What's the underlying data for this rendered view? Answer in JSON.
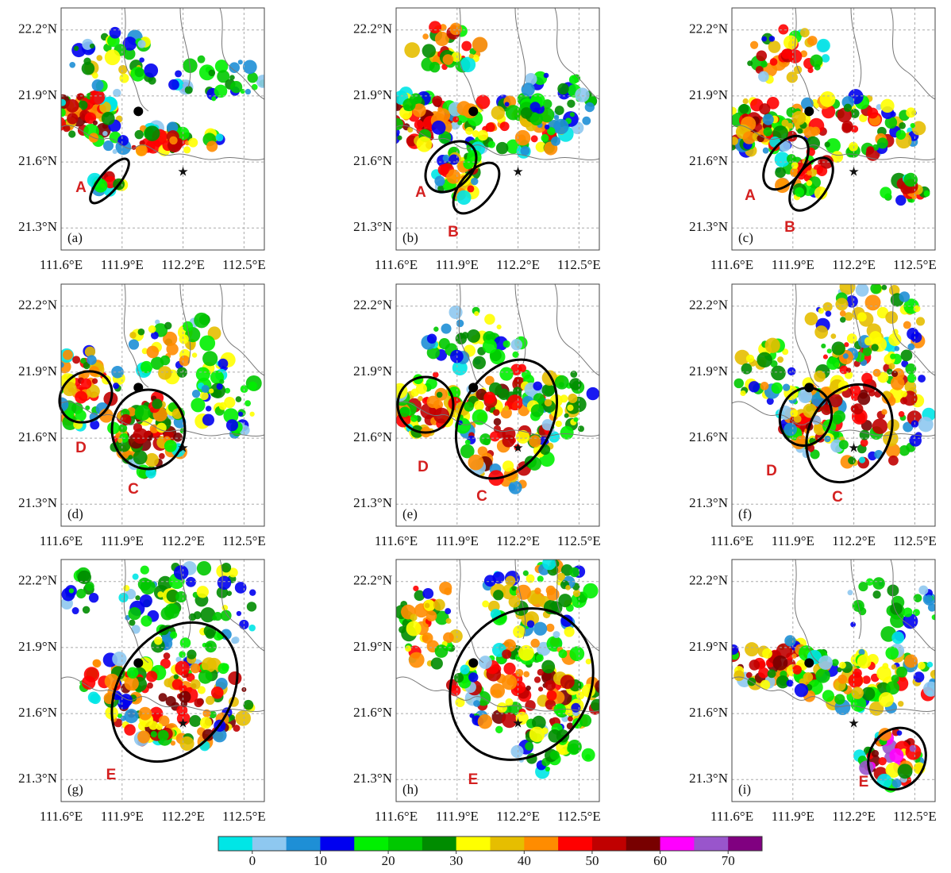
{
  "lon_lim": [
    111.6,
    112.6
  ],
  "lat_lim": [
    21.2,
    22.3
  ],
  "lon_ticks": [
    {
      "value": 111.6,
      "label": "111.6°E"
    },
    {
      "value": 111.9,
      "label": "111.9°E"
    },
    {
      "value": 112.2,
      "label": "112.2°E"
    },
    {
      "value": 112.5,
      "label": "112.5°E"
    }
  ],
  "lat_ticks": [
    {
      "value": 22.2,
      "label": "22.2°N"
    },
    {
      "value": 21.9,
      "label": "21.9°N"
    },
    {
      "value": 21.6,
      "label": "21.6°N"
    },
    {
      "value": 21.3,
      "label": "21.3°N"
    }
  ],
  "panels": [
    {
      "label": "(a)",
      "annotations": [
        "A"
      ]
    },
    {
      "label": "(b)",
      "annotations": [
        "A",
        "B"
      ]
    },
    {
      "label": "(c)",
      "annotations": [
        "A",
        "B"
      ]
    },
    {
      "label": "(d)",
      "annotations": [
        "D",
        "C"
      ]
    },
    {
      "label": "(e)",
      "annotations": [
        "D",
        "C"
      ]
    },
    {
      "label": "(f)",
      "annotations": [
        "D",
        "C"
      ]
    },
    {
      "label": "(g)",
      "annotations": [
        "E"
      ]
    },
    {
      "label": "(h)",
      "annotations": [
        "E"
      ]
    },
    {
      "label": "(i)",
      "annotations": [
        "E"
      ]
    }
  ],
  "colorbar": {
    "lim": [
      -5,
      75
    ],
    "ticks": [
      0,
      10,
      20,
      30,
      40,
      50,
      60,
      70
    ],
    "colors": [
      "#00e6e6",
      "#8ec8f0",
      "#1e8fd6",
      "#0000f0",
      "#00f000",
      "#00c800",
      "#008c00",
      "#ffff00",
      "#e6be00",
      "#ff8c00",
      "#ff0000",
      "#c00000",
      "#780000",
      "#ff00ff",
      "#9955cc",
      "#800080"
    ]
  }
}
